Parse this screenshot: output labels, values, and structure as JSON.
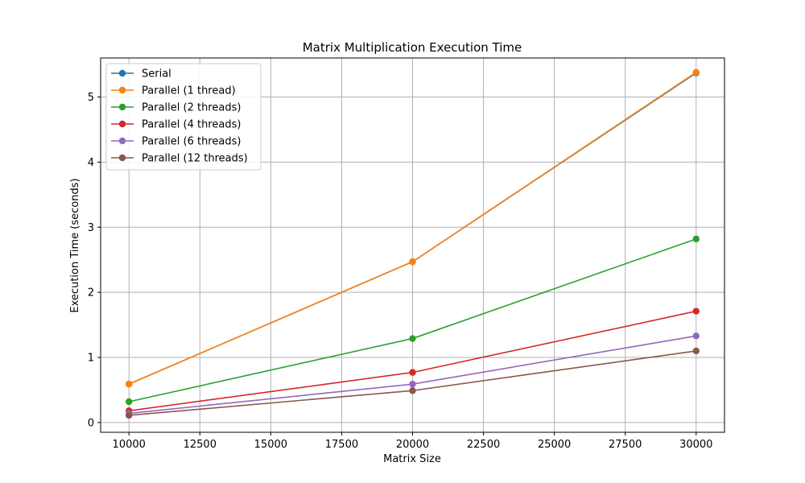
{
  "chart_data": {
    "type": "line",
    "title": "Matrix Multiplication Execution Time",
    "xlabel": "Matrix Size",
    "ylabel": "Execution Time (seconds)",
    "x": [
      10000,
      20000,
      30000
    ],
    "xlim": [
      9000,
      31000
    ],
    "ylim": [
      -0.15,
      5.6
    ],
    "xticks": [
      10000,
      12500,
      15000,
      17500,
      20000,
      22500,
      25000,
      27500,
      30000
    ],
    "yticks": [
      0,
      1,
      2,
      3,
      4,
      5
    ],
    "grid": true,
    "legend_position": "top-left",
    "series": [
      {
        "name": "Serial",
        "color": "#1f77b4",
        "values": [
          0.59,
          2.47,
          5.37
        ]
      },
      {
        "name": "Parallel (1 thread)",
        "color": "#ff7f0e",
        "values": [
          0.59,
          2.47,
          5.38
        ]
      },
      {
        "name": "Parallel (2 threads)",
        "color": "#2ca02c",
        "values": [
          0.32,
          1.29,
          2.82
        ]
      },
      {
        "name": "Parallel (4 threads)",
        "color": "#d62728",
        "values": [
          0.18,
          0.77,
          1.71
        ]
      },
      {
        "name": "Parallel (6 threads)",
        "color": "#9467bd",
        "values": [
          0.14,
          0.59,
          1.33
        ]
      },
      {
        "name": "Parallel (12 threads)",
        "color": "#8c564b",
        "values": [
          0.11,
          0.49,
          1.1
        ]
      }
    ]
  }
}
